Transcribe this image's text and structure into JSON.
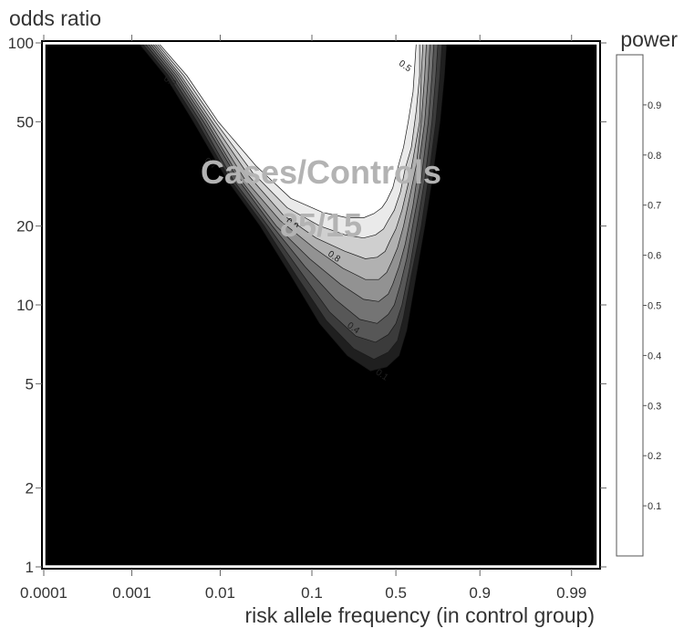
{
  "chart_data": {
    "type": "heatmap",
    "subtype": "filled-contour",
    "xlabel": "risk allele frequency (in control group)",
    "ylabel": "odds ratio",
    "x_scale": "logit",
    "y_scale": "log",
    "xlim": [
      0.0001,
      0.995
    ],
    "ylim": [
      1,
      100
    ],
    "x_ticks": [
      {
        "value": 0.0001,
        "label": "0.0001"
      },
      {
        "value": 0.001,
        "label": "0.001"
      },
      {
        "value": 0.01,
        "label": "0.01"
      },
      {
        "value": 0.1,
        "label": "0.1"
      },
      {
        "value": 0.5,
        "label": "0.5"
      },
      {
        "value": 0.9,
        "label": "0.9"
      },
      {
        "value": 0.99,
        "label": "0.99"
      }
    ],
    "y_ticks": [
      {
        "value": 1,
        "label": "1"
      },
      {
        "value": 2,
        "label": "2"
      },
      {
        "value": 5,
        "label": "5"
      },
      {
        "value": 10,
        "label": "10"
      },
      {
        "value": 20,
        "label": "20"
      },
      {
        "value": 50,
        "label": "50"
      },
      {
        "value": 100,
        "label": "100"
      }
    ],
    "legend": {
      "title": "power",
      "placement": "right",
      "levels": [
        0.1,
        0.2,
        0.3,
        0.4,
        0.5,
        0.6,
        0.7,
        0.8,
        0.9
      ],
      "level_labels": [
        "0.1",
        "0.2",
        "0.3",
        "0.4",
        "0.5",
        "0.6",
        "0.7",
        "0.8",
        "0.9"
      ],
      "band_colors": [
        "#000000",
        "#1f1f1f",
        "#3b3b3b",
        "#575757",
        "#747474",
        "#929292",
        "#b1b1b1",
        "#cfcfcf",
        "#eaeaea",
        "#ffffff"
      ]
    },
    "annotation": {
      "line1": "Cases/Controls",
      "line2": "85/15"
    },
    "contour_labels": [
      {
        "text": "0.3",
        "x": 0.0026,
        "y": 70
      },
      {
        "text": "0.7",
        "x": 0.0075,
        "y": 34
      },
      {
        "text": "0.9",
        "x": 0.06,
        "y": 20
      },
      {
        "text": "0.8",
        "x": 0.16,
        "y": 15
      },
      {
        "text": "0.4",
        "x": 0.24,
        "y": 8
      },
      {
        "text": "0.5",
        "x": 0.55,
        "y": 80
      },
      {
        "text": "0.1",
        "x": 0.4,
        "y": 5.3
      }
    ],
    "power_contours": [
      {
        "level": 0.1,
        "left": [
          [
            0.0012,
            100
          ],
          [
            0.0024,
            75
          ],
          [
            0.005,
            50
          ],
          [
            0.012,
            30
          ],
          [
            0.028,
            20
          ],
          [
            0.06,
            13
          ],
          [
            0.12,
            8.5
          ],
          [
            0.22,
            6.4
          ],
          [
            0.34,
            5.6
          ],
          [
            0.44,
            5.8
          ]
        ],
        "right": [
          [
            0.52,
            6.4
          ],
          [
            0.57,
            8
          ],
          [
            0.62,
            12
          ],
          [
            0.68,
            20
          ],
          [
            0.72,
            30
          ],
          [
            0.76,
            50
          ],
          [
            0.78,
            75
          ],
          [
            0.79,
            100
          ]
        ]
      },
      {
        "level": 0.2,
        "left": [
          [
            0.0013,
            100
          ],
          [
            0.0026,
            75
          ],
          [
            0.0055,
            50
          ],
          [
            0.013,
            30
          ],
          [
            0.031,
            20
          ],
          [
            0.068,
            13
          ],
          [
            0.14,
            8.7
          ],
          [
            0.25,
            6.8
          ],
          [
            0.36,
            6.2
          ],
          [
            0.45,
            6.6
          ]
        ],
        "right": [
          [
            0.51,
            7.3
          ],
          [
            0.55,
            9
          ],
          [
            0.6,
            13
          ],
          [
            0.66,
            20
          ],
          [
            0.7,
            30
          ],
          [
            0.74,
            50
          ],
          [
            0.76,
            75
          ],
          [
            0.77,
            100
          ]
        ]
      },
      {
        "level": 0.3,
        "left": [
          [
            0.0014,
            100
          ],
          [
            0.0028,
            75
          ],
          [
            0.006,
            50
          ],
          [
            0.014,
            30
          ],
          [
            0.034,
            20
          ],
          [
            0.075,
            13.5
          ],
          [
            0.15,
            9.4
          ],
          [
            0.26,
            7.6
          ],
          [
            0.37,
            7.2
          ],
          [
            0.45,
            7.7
          ]
        ],
        "right": [
          [
            0.5,
            8.5
          ],
          [
            0.54,
            10
          ],
          [
            0.59,
            14
          ],
          [
            0.64,
            21
          ],
          [
            0.68,
            30
          ],
          [
            0.72,
            50
          ],
          [
            0.74,
            75
          ],
          [
            0.75,
            100
          ]
        ]
      },
      {
        "level": 0.4,
        "left": [
          [
            0.0015,
            100
          ],
          [
            0.003,
            75
          ],
          [
            0.0065,
            50
          ],
          [
            0.016,
            30
          ],
          [
            0.038,
            20
          ],
          [
            0.085,
            14
          ],
          [
            0.17,
            10.5
          ],
          [
            0.28,
            8.8
          ],
          [
            0.38,
            8.5
          ],
          [
            0.45,
            9.2
          ]
        ],
        "right": [
          [
            0.49,
            10
          ],
          [
            0.53,
            12
          ],
          [
            0.57,
            15
          ],
          [
            0.62,
            22
          ],
          [
            0.66,
            30
          ],
          [
            0.7,
            50
          ],
          [
            0.72,
            75
          ],
          [
            0.73,
            100
          ]
        ]
      },
      {
        "level": 0.5,
        "left": [
          [
            0.0016,
            100
          ],
          [
            0.0032,
            75
          ],
          [
            0.007,
            50
          ],
          [
            0.017,
            30
          ],
          [
            0.042,
            20
          ],
          [
            0.095,
            15
          ],
          [
            0.19,
            12
          ],
          [
            0.3,
            10.5
          ],
          [
            0.39,
            10.3
          ],
          [
            0.45,
            11
          ]
        ],
        "right": [
          [
            0.48,
            12
          ],
          [
            0.52,
            14
          ],
          [
            0.56,
            17
          ],
          [
            0.61,
            24
          ],
          [
            0.64,
            32
          ],
          [
            0.68,
            50
          ],
          [
            0.7,
            75
          ],
          [
            0.71,
            100
          ]
        ]
      },
      {
        "level": 0.6,
        "left": [
          [
            0.0017,
            100
          ],
          [
            0.0034,
            75
          ],
          [
            0.0075,
            50
          ],
          [
            0.019,
            30
          ],
          [
            0.046,
            21
          ],
          [
            0.105,
            16.5
          ],
          [
            0.2,
            13.8
          ],
          [
            0.31,
            12.5
          ],
          [
            0.39,
            12.5
          ],
          [
            0.44,
            13.3
          ]
        ],
        "right": [
          [
            0.47,
            14.5
          ],
          [
            0.51,
            16.5
          ],
          [
            0.55,
            20
          ],
          [
            0.59,
            26
          ],
          [
            0.63,
            34
          ],
          [
            0.66,
            50
          ],
          [
            0.68,
            75
          ],
          [
            0.69,
            100
          ]
        ]
      },
      {
        "level": 0.7,
        "left": [
          [
            0.0018,
            100
          ],
          [
            0.0036,
            75
          ],
          [
            0.0081,
            50
          ],
          [
            0.021,
            31
          ],
          [
            0.05,
            22
          ],
          [
            0.11,
            18
          ],
          [
            0.21,
            16
          ],
          [
            0.31,
            15
          ],
          [
            0.38,
            15.2
          ],
          [
            0.43,
            16
          ]
        ],
        "right": [
          [
            0.46,
            17.5
          ],
          [
            0.5,
            19.5
          ],
          [
            0.54,
            23
          ],
          [
            0.58,
            29
          ],
          [
            0.61,
            36
          ],
          [
            0.65,
            50
          ],
          [
            0.66,
            75
          ],
          [
            0.67,
            100
          ]
        ]
      },
      {
        "level": 0.8,
        "left": [
          [
            0.0019,
            100
          ],
          [
            0.0039,
            75
          ],
          [
            0.0088,
            50
          ],
          [
            0.023,
            32
          ],
          [
            0.055,
            23.5
          ],
          [
            0.12,
            20
          ],
          [
            0.21,
            18.5
          ],
          [
            0.3,
            18
          ],
          [
            0.37,
            18.5
          ],
          [
            0.42,
            19.5
          ]
        ],
        "right": [
          [
            0.45,
            21
          ],
          [
            0.49,
            23
          ],
          [
            0.53,
            27
          ],
          [
            0.56,
            33
          ],
          [
            0.6,
            40
          ],
          [
            0.63,
            55
          ],
          [
            0.65,
            75
          ],
          [
            0.65,
            100
          ]
        ]
      },
      {
        "level": 0.9,
        "left": [
          [
            0.002,
            100
          ],
          [
            0.0042,
            75
          ],
          [
            0.0095,
            50
          ],
          [
            0.025,
            34
          ],
          [
            0.06,
            25.5
          ],
          [
            0.13,
            22.5
          ],
          [
            0.22,
            21.5
          ],
          [
            0.3,
            21.5
          ],
          [
            0.36,
            22.3
          ],
          [
            0.41,
            23.5
          ]
        ],
        "right": [
          [
            0.44,
            25
          ],
          [
            0.48,
            28
          ],
          [
            0.51,
            33
          ],
          [
            0.55,
            40
          ],
          [
            0.58,
            50
          ],
          [
            0.61,
            65
          ],
          [
            0.62,
            80
          ],
          [
            0.63,
            100
          ]
        ]
      }
    ]
  }
}
